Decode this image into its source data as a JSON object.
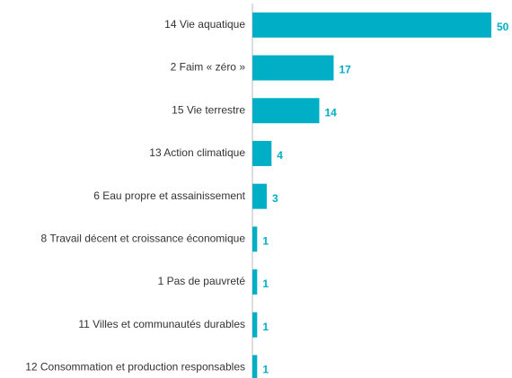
{
  "chart_data": {
    "type": "hbar",
    "categories": [
      "14 Vie aquatique",
      "2 Faim « zéro »",
      "15 Vie terrestre",
      "13 Action climatique",
      "6 Eau propre et assainissement",
      "8 Travail décent et croissance économique",
      "1 Pas de pauvreté",
      "11 Villes et communautés durables",
      "12 Consommation et production responsables"
    ],
    "values": [
      50,
      17,
      14,
      4,
      3,
      1,
      1,
      1,
      1
    ],
    "color": "#00afc6",
    "xlim": [
      0,
      50
    ]
  }
}
